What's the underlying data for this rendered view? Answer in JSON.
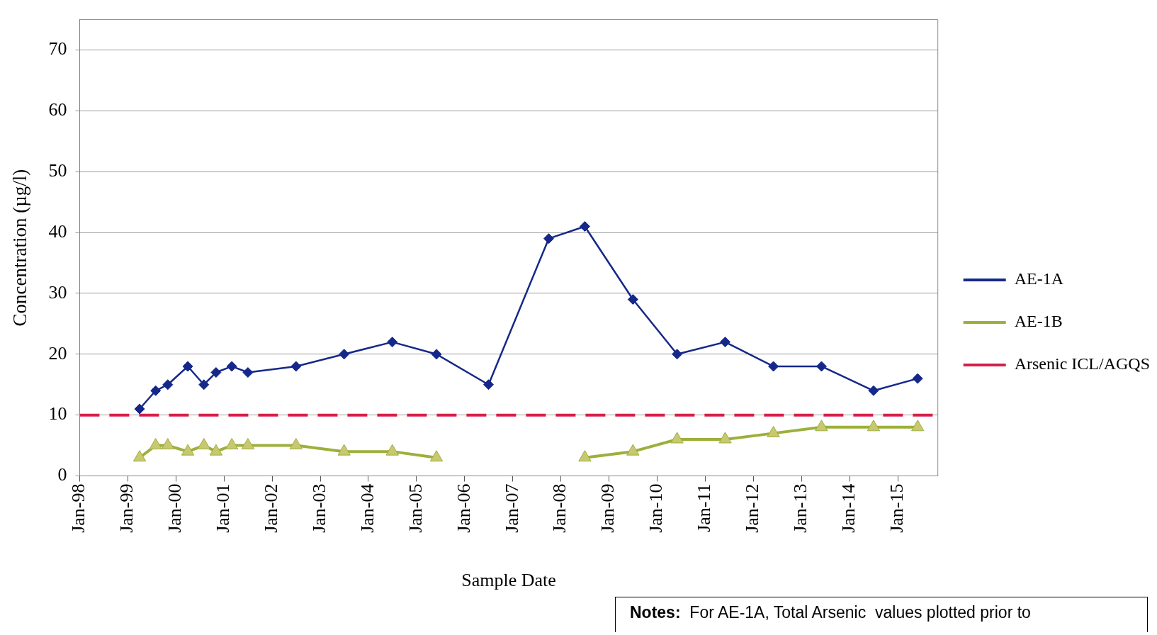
{
  "chart_data": {
    "type": "line",
    "xlabel": "Sample Date",
    "ylabel": "Concentration (µg/l)",
    "xlim": [
      "1998-01",
      "2015-11"
    ],
    "xticks": [
      {
        "value": "1998-01",
        "label": "Jan-98"
      },
      {
        "value": "1999-01",
        "label": "Jan-99"
      },
      {
        "value": "2000-01",
        "label": "Jan-00"
      },
      {
        "value": "2001-01",
        "label": "Jan-01"
      },
      {
        "value": "2002-01",
        "label": "Jan-02"
      },
      {
        "value": "2003-01",
        "label": "Jan-03"
      },
      {
        "value": "2004-01",
        "label": "Jan-04"
      },
      {
        "value": "2005-01",
        "label": "Jan-05"
      },
      {
        "value": "2006-01",
        "label": "Jan-06"
      },
      {
        "value": "2007-01",
        "label": "Jan-07"
      },
      {
        "value": "2008-01",
        "label": "Jan-08"
      },
      {
        "value": "2009-01",
        "label": "Jan-09"
      },
      {
        "value": "2010-01",
        "label": "Jan-10"
      },
      {
        "value": "2011-01",
        "label": "Jan-11"
      },
      {
        "value": "2012-01",
        "label": "Jan-12"
      },
      {
        "value": "2013-01",
        "label": "Jan-13"
      },
      {
        "value": "2014-01",
        "label": "Jan-14"
      },
      {
        "value": "2015-01",
        "label": "Jan-15"
      }
    ],
    "ylim": [
      0,
      75
    ],
    "yticks": [
      0,
      10,
      20,
      30,
      40,
      50,
      60,
      70
    ],
    "grid": "y",
    "legend": "right",
    "line_style": "solid",
    "series": [
      {
        "name": "AE-1A",
        "color": "#15288a",
        "marker": "diamond",
        "x": [
          "1999-04",
          "1999-08",
          "1999-11",
          "2000-04",
          "2000-08",
          "2000-11",
          "2001-03",
          "2001-07",
          "2002-07",
          "2003-07",
          "2004-07",
          "2005-06",
          "2006-07",
          "2007-10",
          "2008-07",
          "2009-07",
          "2010-06",
          "2011-06",
          "2012-06",
          "2013-06",
          "2014-07",
          "2015-06"
        ],
        "values": [
          11,
          14,
          15,
          18,
          15,
          17,
          18,
          17,
          18,
          20,
          22,
          20,
          15,
          39,
          41,
          29,
          20,
          22,
          18,
          18,
          14,
          16
        ]
      },
      {
        "name": "AE-1B",
        "color": "#9cb03c",
        "marker": "triangle",
        "x": [
          "1999-04",
          "1999-08",
          "1999-11",
          "2000-04",
          "2000-08",
          "2000-11",
          "2001-03",
          "2001-07",
          "2002-07",
          "2003-07",
          "2004-07",
          "2005-06",
          "2006-07",
          "2008-07",
          "2009-07",
          "2010-06",
          "2011-06",
          "2012-06",
          "2013-06",
          "2014-07",
          "2015-06"
        ],
        "values": [
          3,
          5,
          5,
          4,
          5,
          4,
          5,
          5,
          5,
          4,
          4,
          3,
          null,
          3,
          4,
          6,
          6,
          7,
          8,
          8,
          8
        ]
      },
      {
        "name": "Arsenic ICL/AGQS",
        "color": "#d81e4a",
        "marker": "none",
        "line_style": "dashed",
        "x": [
          "1998-01",
          "2015-11"
        ],
        "values": [
          10,
          10
        ]
      }
    ],
    "annotations": [
      "Notes:  For AE-1A, Total Arsenic  values plotted prior to"
    ]
  }
}
